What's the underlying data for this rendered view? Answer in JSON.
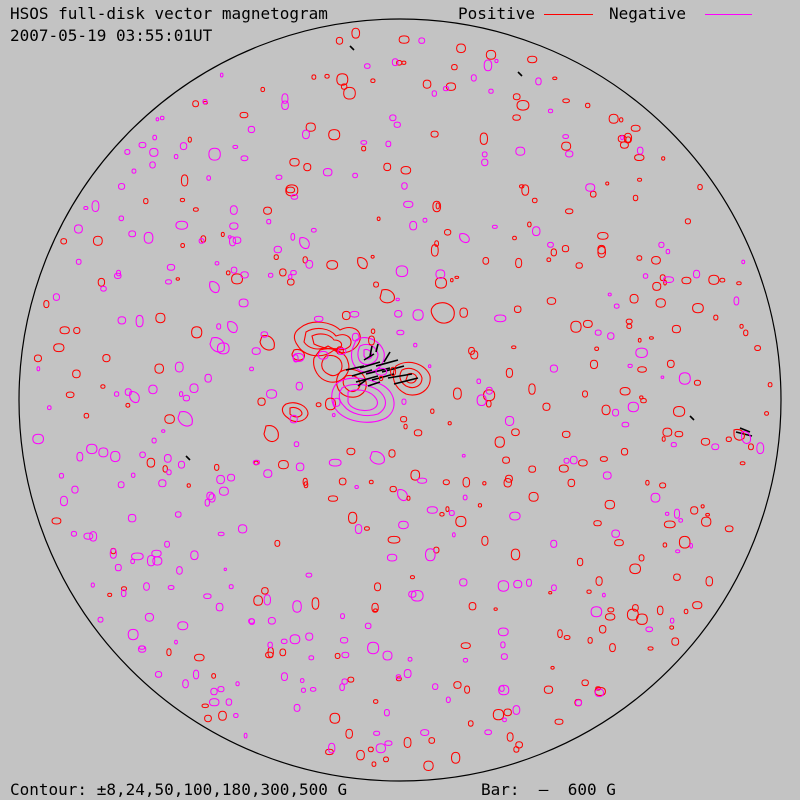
{
  "header": {
    "title": "HSOS full-disk vector magnetogram",
    "timestamp": "2007-05-19 03:55:01UT"
  },
  "legend": {
    "positive_label": "Positive",
    "negative_label": "Negative",
    "positive_color": "#ff0000",
    "negative_color": "#ff00ff"
  },
  "footer": {
    "contour": "Contour: ±8,24,50,100,180,300,500 G",
    "bar": "Bar:  —  600 G"
  },
  "colors": {
    "background": "#c3c3c3",
    "limb": "#000000",
    "transverse_field": "#000000"
  }
}
